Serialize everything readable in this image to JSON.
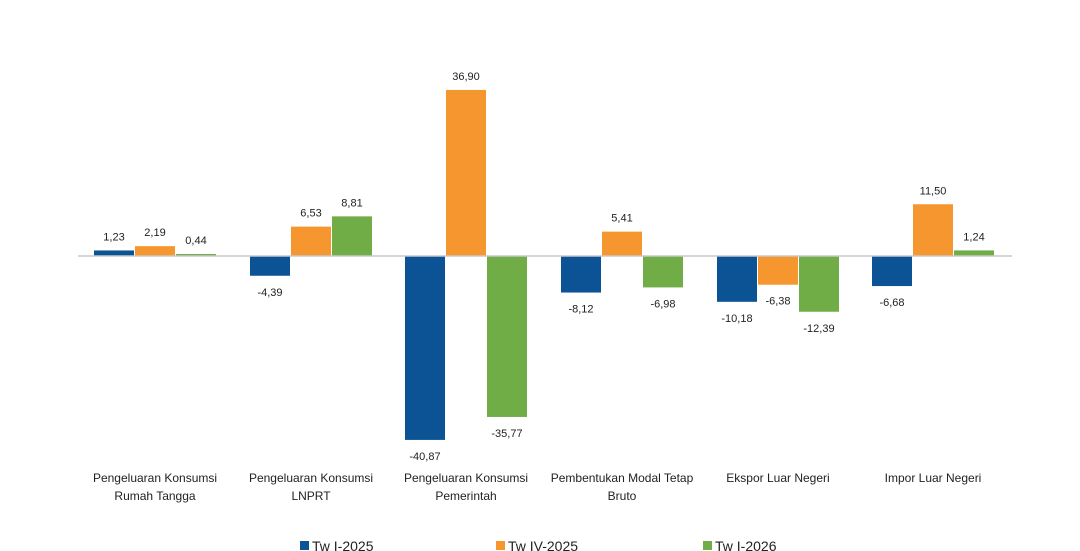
{
  "chart_data": {
    "type": "bar",
    "title": "",
    "xlabel": "",
    "ylabel": "",
    "ylim": [
      -45,
      40
    ],
    "grid": false,
    "legend": "bottom",
    "categories": [
      [
        "Pengeluaran Konsumsi",
        "Rumah Tangga"
      ],
      [
        "Pengeluaran Konsumsi",
        "LNPRT"
      ],
      [
        "Pengeluaran Konsumsi",
        "Pemerintah"
      ],
      [
        "Pembentukan Modal Tetap",
        "Bruto"
      ],
      [
        "Ekspor Luar Negeri"
      ],
      [
        "Impor Luar Negeri"
      ]
    ],
    "series": [
      {
        "name": "Tw I-2025",
        "color": "#0b5394",
        "values": [
          1.23,
          -4.39,
          -40.87,
          -8.12,
          -10.18,
          -6.68
        ],
        "labels": [
          "1,23",
          "-4,39",
          "-40,87",
          "-8,12",
          "-10,18",
          "-6,68"
        ]
      },
      {
        "name": "Tw IV-2025",
        "color": "#f6962f",
        "values": [
          2.19,
          6.53,
          36.9,
          5.41,
          -6.38,
          11.5
        ],
        "labels": [
          "2,19",
          "6,53",
          "36,90",
          "5,41",
          "-6,38",
          "11,50"
        ]
      },
      {
        "name": "Tw I-2026",
        "color": "#71ad47",
        "values": [
          0.44,
          8.81,
          -35.77,
          -6.98,
          -12.39,
          1.24
        ],
        "labels": [
          "0,44",
          "8,81",
          "-35,77",
          "-6,98",
          "-12,39",
          "1,24"
        ]
      }
    ]
  }
}
